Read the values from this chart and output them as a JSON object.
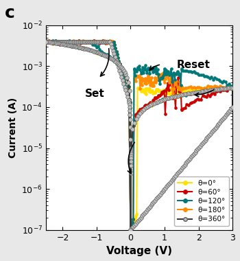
{
  "title": "c",
  "xlabel": "Voltage (V)",
  "ylabel": "Current (A)",
  "xlim": [
    -2.5,
    3.0
  ],
  "ylim_log": [
    -7,
    -2
  ],
  "series": [
    {
      "label": "θ=0°",
      "color": "#FFE000",
      "zorder": 3
    },
    {
      "label": "θ=60°",
      "color": "#CC0000",
      "zorder": 3
    },
    {
      "label": "θ=120°",
      "color": "#007878",
      "zorder": 4
    },
    {
      "label": "θ=180°",
      "color": "#FF8C00",
      "zorder": 3
    },
    {
      "label": "θ=360°",
      "color": "#3a3a3a",
      "zorder": 5
    }
  ],
  "background_color": "#ffffff",
  "fig_bg": "#e8e8e8"
}
